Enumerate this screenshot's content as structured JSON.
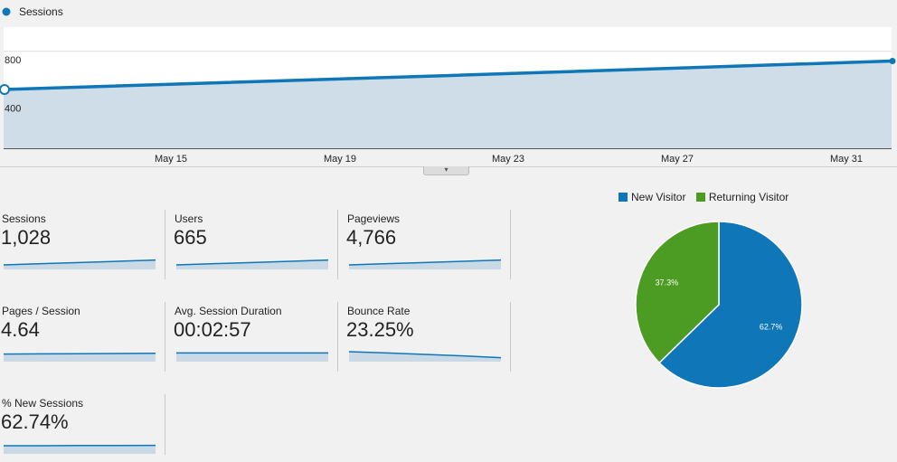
{
  "main_chart": {
    "legend_label": "Sessions",
    "color": "#0f76b8",
    "chart_data": {
      "type": "area",
      "series": [
        {
          "name": "Sessions",
          "values": [
            485,
            600,
            720
          ]
        }
      ],
      "x_positions_note": "",
      "y_ticks": [
        "800",
        "400"
      ],
      "x_ticks": [
        "May 15",
        "May 19",
        "May 23",
        "May 27",
        "May 31"
      ],
      "ylim": [
        0,
        1000
      ],
      "grid": true
    }
  },
  "collapse_icon": "▾",
  "metrics": [
    {
      "label": "Sessions",
      "value": "1,028",
      "trend": [
        0.45,
        0.52,
        0.58,
        0.65,
        0.72
      ]
    },
    {
      "label": "Users",
      "value": "665",
      "trend": [
        0.45,
        0.52,
        0.58,
        0.65,
        0.72
      ]
    },
    {
      "label": "Pageviews",
      "value": "4,766",
      "trend": [
        0.45,
        0.52,
        0.58,
        0.65,
        0.72
      ]
    },
    {
      "label": "Pages / Session",
      "value": "4.64",
      "trend": [
        0.62,
        0.63,
        0.64,
        0.65,
        0.66
      ]
    },
    {
      "label": "Avg. Session Duration",
      "value": "00:02:57",
      "trend": [
        0.68,
        0.68,
        0.68,
        0.68,
        0.68
      ]
    },
    {
      "label": "Bounce Rate",
      "value": "23.25%",
      "trend": [
        0.75,
        0.68,
        0.6,
        0.52,
        0.42
      ]
    },
    {
      "label": "% New Sessions",
      "value": "62.74%",
      "trend": [
        0.65,
        0.65,
        0.66,
        0.66,
        0.67
      ]
    }
  ],
  "pie": {
    "legend": [
      {
        "name": "New Visitor",
        "color": "#0f76b8"
      },
      {
        "name": "Returning Visitor",
        "color": "#4c9b22"
      }
    ],
    "chart_data": {
      "type": "pie",
      "slices": [
        {
          "name": "New Visitor",
          "percent": 62.7,
          "label": "62.7%",
          "color": "#0f76b8"
        },
        {
          "name": "Returning Visitor",
          "percent": 37.3,
          "label": "37.3%",
          "color": "#4c9b22"
        }
      ]
    }
  }
}
